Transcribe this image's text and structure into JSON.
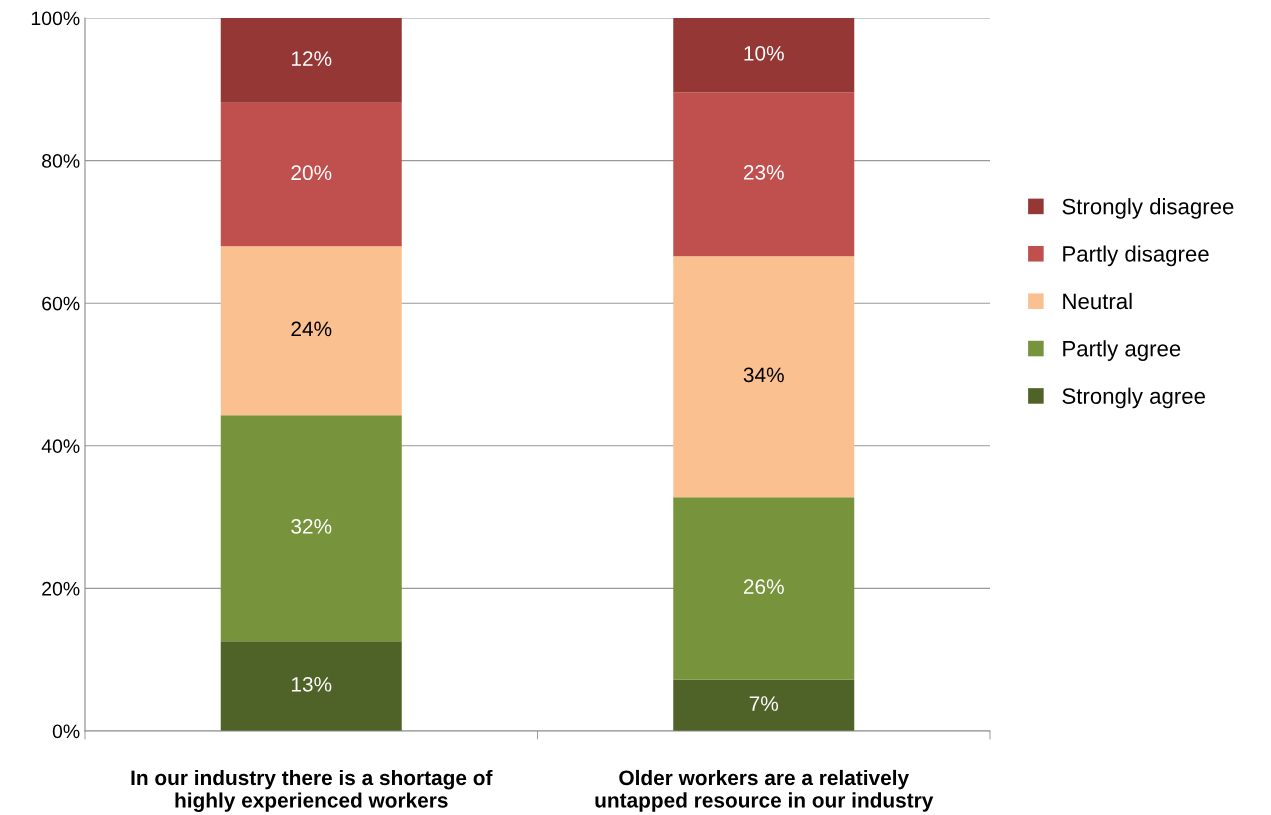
{
  "chart_data": {
    "type": "bar",
    "stacked": true,
    "categories": [
      "In our industry there is a shortage of\nhighly experienced workers",
      "Older workers are a relatively\nuntapped resource in our industry"
    ],
    "series": [
      {
        "name": "Strongly agree",
        "color": "#4f6228",
        "values": [
          12.6,
          7.2
        ],
        "value_labels": [
          "13%",
          "7%"
        ]
      },
      {
        "name": "Partly agree",
        "color": "#77933c",
        "values": [
          31.7,
          25.6
        ],
        "value_labels": [
          "32%",
          "26%"
        ]
      },
      {
        "name": "Neutral",
        "color": "#fac090",
        "values": [
          23.7,
          33.8
        ],
        "value_labels": [
          "24%",
          "34%"
        ]
      },
      {
        "name": "Partly disagree",
        "color": "#c0504d",
        "values": [
          20.1,
          23.0
        ],
        "value_labels": [
          "20%",
          "23%"
        ]
      },
      {
        "name": "Strongly disagree",
        "color": "#953735",
        "values": [
          11.9,
          10.4
        ],
        "value_labels": [
          "12%",
          "10%"
        ]
      }
    ],
    "ylim": [
      0,
      100
    ],
    "yticks": [
      {
        "value": 0,
        "label": "0%"
      },
      {
        "value": 20,
        "label": "20%"
      },
      {
        "value": 40,
        "label": "40%"
      },
      {
        "value": 60,
        "label": "60%"
      },
      {
        "value": 80,
        "label": "80%"
      },
      {
        "value": 100,
        "label": "100%"
      }
    ],
    "grid": "y",
    "legend": "right"
  }
}
